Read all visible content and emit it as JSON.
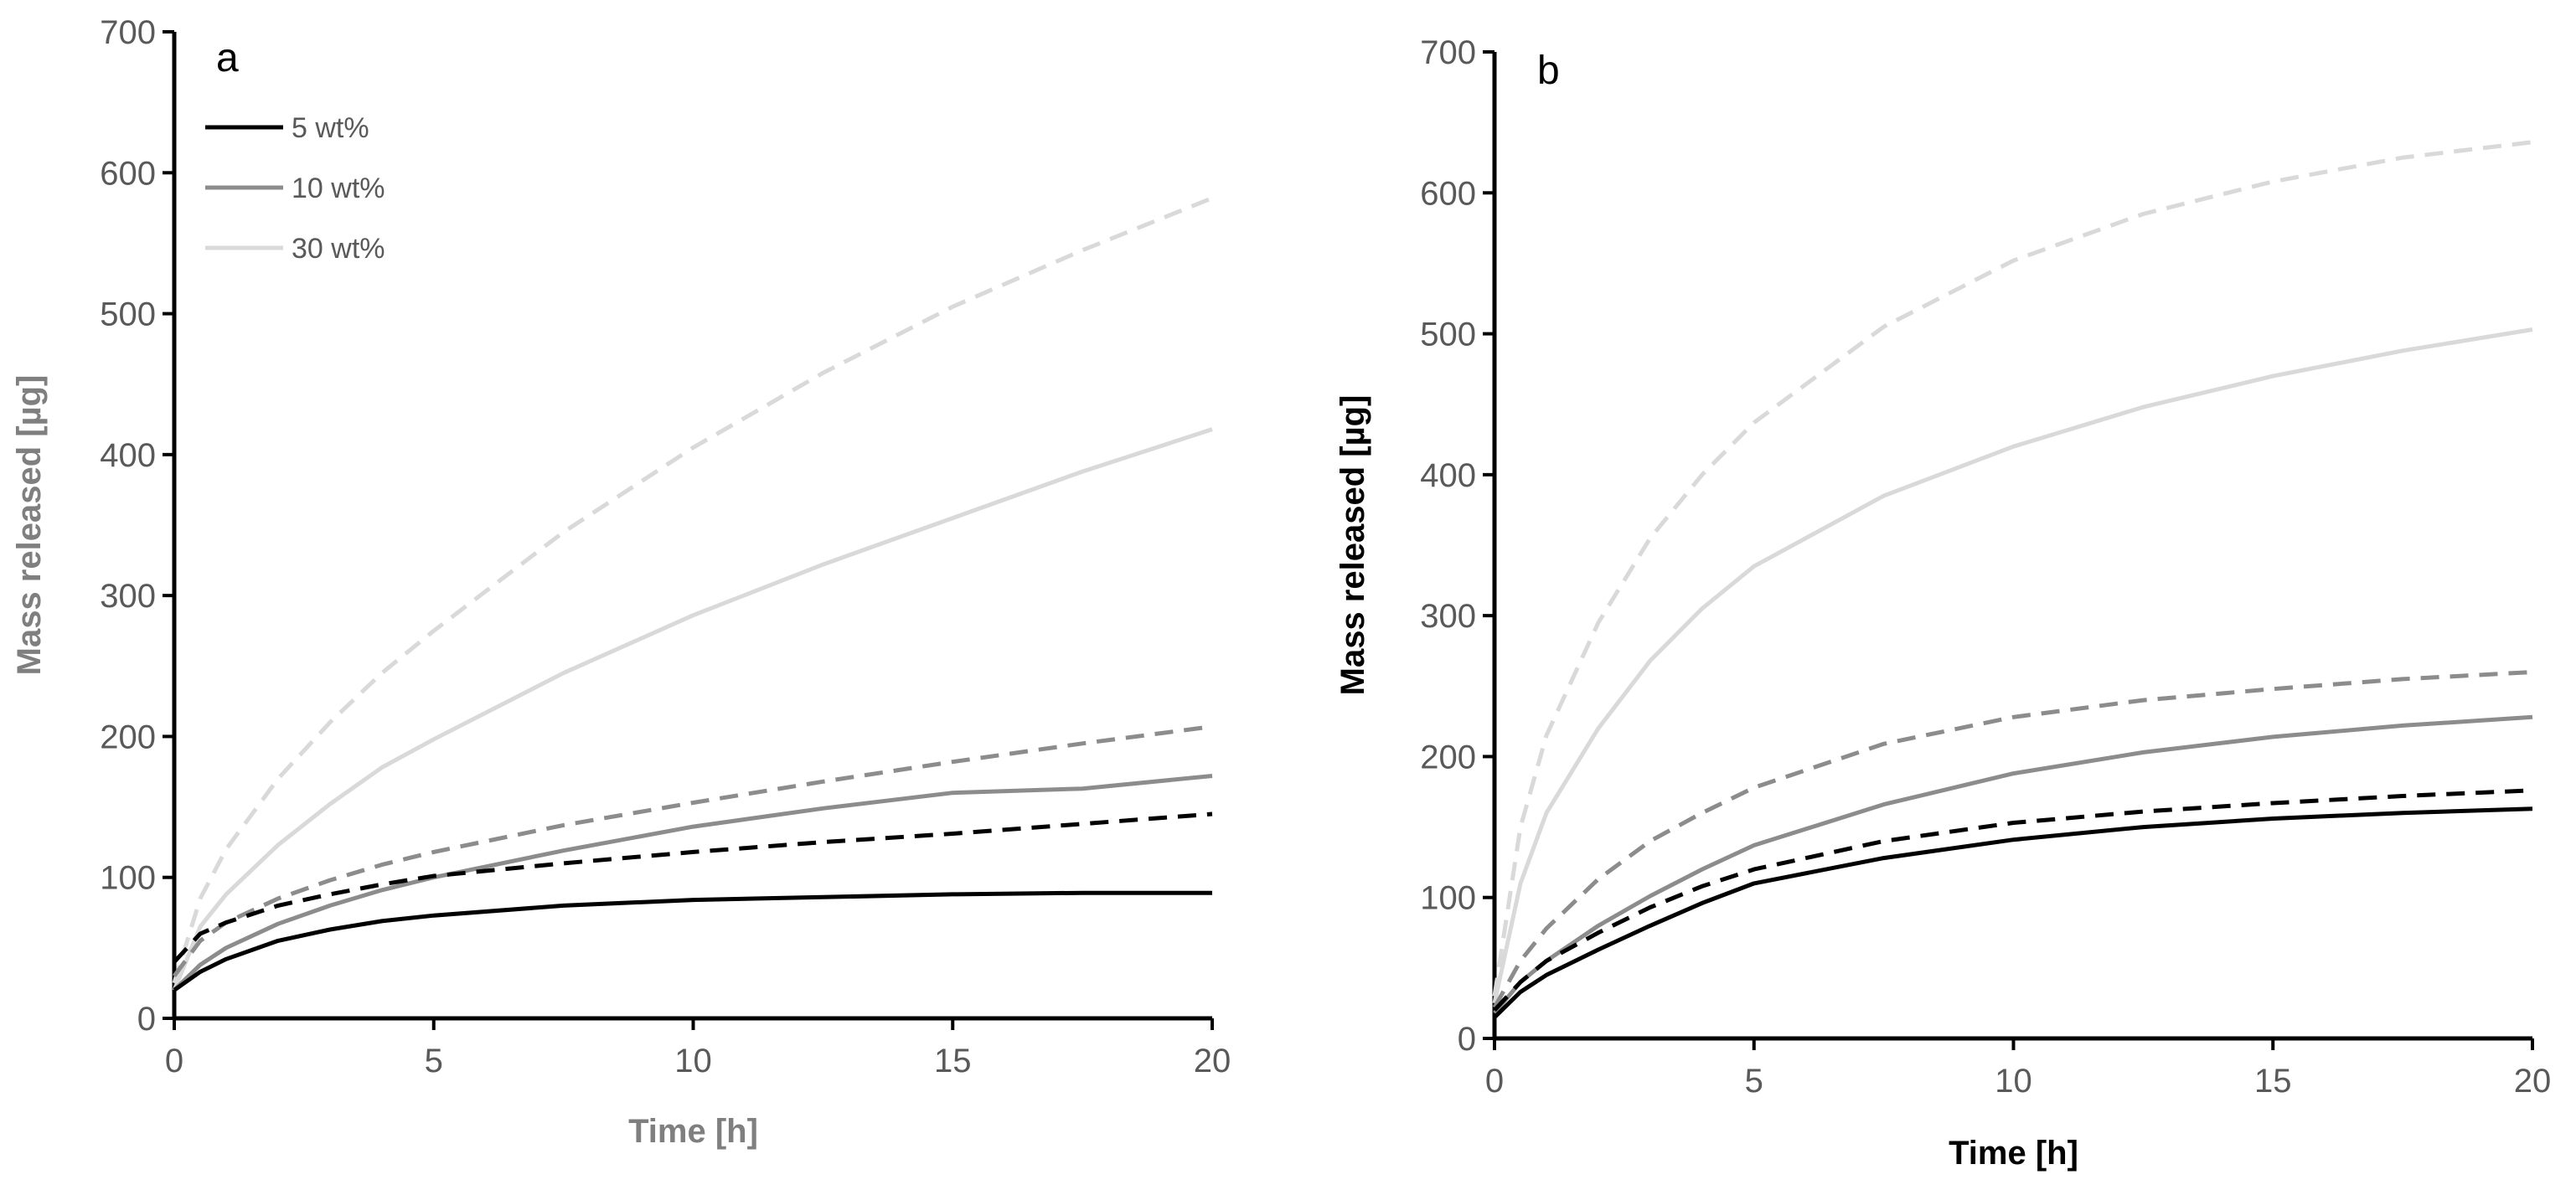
{
  "chart_data": [
    {
      "type": "line",
      "panel_label": "a",
      "xlabel": "Time [h]",
      "ylabel": "Mass released [µg]",
      "xlim": [
        0,
        20
      ],
      "ylim": [
        0,
        700
      ],
      "xticks": [
        "0",
        "5",
        "10",
        "15",
        "20"
      ],
      "yticks": [
        "0",
        "100",
        "200",
        "300",
        "400",
        "500",
        "600",
        "700"
      ],
      "legend": {
        "position": "top-left",
        "entries": [
          {
            "label": "5 wt%",
            "color": "#000000"
          },
          {
            "label": "10 wt%",
            "color": "#8c8c8c"
          },
          {
            "label": "30 wt%",
            "color": "#d9d9d9"
          }
        ]
      },
      "series": [
        {
          "name": "5 wt%",
          "style": "solid",
          "color": "#000000",
          "x": [
            0,
            0.5,
            1,
            2,
            3,
            4,
            5,
            7.5,
            10,
            12.5,
            15,
            17.5,
            20
          ],
          "y": [
            20,
            33,
            42,
            55,
            63,
            69,
            73,
            80,
            84,
            86,
            88,
            89,
            89
          ]
        },
        {
          "name": "5 wt%",
          "style": "dashed",
          "color": "#000000",
          "x": [
            0,
            0.5,
            1,
            2,
            3,
            4,
            5,
            7.5,
            10,
            12.5,
            15,
            17.5,
            20
          ],
          "y": [
            40,
            60,
            68,
            80,
            88,
            95,
            101,
            110,
            118,
            125,
            131,
            138,
            145
          ]
        },
        {
          "name": "10 wt%",
          "style": "solid",
          "color": "#8c8c8c",
          "x": [
            0,
            0.5,
            1,
            2,
            3,
            4,
            5,
            7.5,
            10,
            12.5,
            15,
            17.5,
            20
          ],
          "y": [
            20,
            38,
            50,
            67,
            80,
            91,
            100,
            119,
            136,
            149,
            160,
            163,
            172
          ]
        },
        {
          "name": "10 wt%",
          "style": "dashed",
          "color": "#8c8c8c",
          "x": [
            0,
            0.5,
            1,
            2,
            3,
            4,
            5,
            7.5,
            10,
            12.5,
            15,
            17.5,
            20
          ],
          "y": [
            30,
            55,
            68,
            85,
            98,
            109,
            118,
            137,
            153,
            168,
            182,
            195,
            207
          ]
        },
        {
          "name": "30 wt%",
          "style": "solid",
          "color": "#d9d9d9",
          "x": [
            0,
            0.5,
            1,
            2,
            3,
            4,
            5,
            7.5,
            10,
            12.5,
            15,
            17.5,
            20
          ],
          "y": [
            20,
            65,
            88,
            123,
            152,
            178,
            198,
            245,
            286,
            322,
            355,
            388,
            418
          ]
        },
        {
          "name": "30 wt%",
          "style": "dashed",
          "color": "#d9d9d9",
          "x": [
            0,
            0.5,
            1,
            2,
            3,
            4,
            5,
            7.5,
            10,
            12.5,
            15,
            17.5,
            20
          ],
          "y": [
            25,
            85,
            120,
            170,
            210,
            245,
            275,
            345,
            405,
            458,
            505,
            545,
            582
          ]
        }
      ]
    },
    {
      "type": "line",
      "panel_label": "b",
      "xlabel": "Time [h]",
      "ylabel": "Mass released [µg]",
      "xlim": [
        0,
        20
      ],
      "ylim": [
        0,
        700
      ],
      "xticks": [
        "0",
        "5",
        "10",
        "15",
        "20"
      ],
      "yticks": [
        "0",
        "100",
        "200",
        "300",
        "400",
        "500",
        "600",
        "700"
      ],
      "series": [
        {
          "name": "5 wt%",
          "style": "solid",
          "color": "#000000",
          "x": [
            0,
            0.5,
            1,
            2,
            3,
            4,
            5,
            7.5,
            10,
            12.5,
            15,
            17.5,
            20
          ],
          "y": [
            15,
            33,
            45,
            63,
            80,
            96,
            110,
            128,
            141,
            150,
            156,
            160,
            163
          ]
        },
        {
          "name": "5 wt%",
          "style": "dashed",
          "color": "#000000",
          "x": [
            0,
            0.5,
            1,
            2,
            3,
            4,
            5,
            7.5,
            10,
            12.5,
            15,
            17.5,
            20
          ],
          "y": [
            20,
            40,
            55,
            75,
            93,
            108,
            120,
            140,
            153,
            161,
            167,
            172,
            176
          ]
        },
        {
          "name": "10 wt%",
          "style": "solid",
          "color": "#8c8c8c",
          "x": [
            0,
            0.5,
            1,
            2,
            3,
            4,
            5,
            7.5,
            10,
            12.5,
            15,
            17.5,
            20
          ],
          "y": [
            18,
            40,
            55,
            80,
            101,
            120,
            137,
            166,
            188,
            203,
            214,
            222,
            228
          ]
        },
        {
          "name": "10 wt%",
          "style": "dashed",
          "color": "#8c8c8c",
          "x": [
            0,
            0.5,
            1,
            2,
            3,
            4,
            5,
            7.5,
            10,
            12.5,
            15,
            17.5,
            20
          ],
          "y": [
            22,
            55,
            78,
            113,
            140,
            160,
            178,
            209,
            228,
            240,
            248,
            255,
            260
          ]
        },
        {
          "name": "30 wt%",
          "style": "solid",
          "color": "#d9d9d9",
          "x": [
            0,
            0.5,
            1,
            2,
            3,
            4,
            5,
            7.5,
            10,
            12.5,
            15,
            17.5,
            20
          ],
          "y": [
            25,
            110,
            160,
            220,
            268,
            305,
            335,
            385,
            420,
            448,
            470,
            488,
            503
          ]
        },
        {
          "name": "30 wt%",
          "style": "dashed",
          "color": "#d9d9d9",
          "x": [
            0,
            0.5,
            1,
            2,
            3,
            4,
            5,
            7.5,
            10,
            12.5,
            15,
            17.5,
            20
          ],
          "y": [
            30,
            150,
            215,
            295,
            355,
            400,
            437,
            505,
            552,
            585,
            608,
            625,
            636
          ]
        }
      ]
    }
  ]
}
